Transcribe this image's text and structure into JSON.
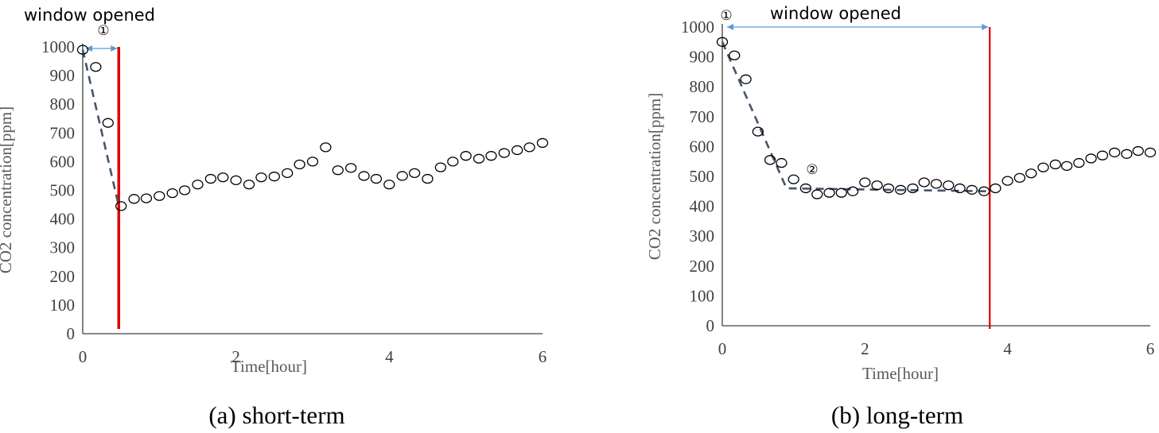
{
  "colors": {
    "axis": "#404040",
    "marker": "#000000",
    "trend": "#44546a",
    "window_line": "#e00000",
    "arrow": "#5b9bd5"
  },
  "chart_data": [
    {
      "type": "scatter",
      "caption": "(a) short-term",
      "annotation": "window opened",
      "marker_labels": [
        "①"
      ],
      "xlabel": "Time[hour]",
      "ylabel": "CO2 concentration[ppm]",
      "xlim": [
        0,
        6
      ],
      "ylim": [
        0,
        1000
      ],
      "xticks": [
        0,
        2,
        4,
        6
      ],
      "yticks": [
        0,
        100,
        200,
        300,
        400,
        500,
        600,
        700,
        800,
        900,
        1000
      ],
      "grid": false,
      "x": [
        0.0,
        0.17,
        0.33,
        0.5,
        0.67,
        0.83,
        1.0,
        1.17,
        1.33,
        1.5,
        1.67,
        1.83,
        2.0,
        2.17,
        2.33,
        2.5,
        2.67,
        2.83,
        3.0,
        3.17,
        3.33,
        3.5,
        3.67,
        3.83,
        4.0,
        4.17,
        4.33,
        4.5,
        4.67,
        4.83,
        5.0,
        5.17,
        5.33,
        5.5,
        5.67,
        5.83,
        6.0
      ],
      "y": [
        990,
        930,
        735,
        445,
        470,
        472,
        480,
        490,
        500,
        520,
        540,
        545,
        535,
        520,
        545,
        548,
        560,
        590,
        600,
        650,
        570,
        578,
        550,
        540,
        520,
        550,
        560,
        540,
        580,
        600,
        620,
        610,
        620,
        630,
        640,
        650,
        665
      ],
      "window_opened_x": [
        0,
        0.47
      ],
      "window_close_x": 0.47,
      "trend_line": [
        [
          0,
          990
        ],
        [
          0.47,
          445
        ]
      ]
    },
    {
      "type": "scatter",
      "caption": "(b) long-term",
      "annotation": "window opened",
      "marker_labels": [
        "①",
        "②"
      ],
      "xlabel": "Time[hour]",
      "ylabel": "CO2 concentration[ppm]",
      "xlim": [
        0,
        6
      ],
      "ylim": [
        0,
        1000
      ],
      "xticks": [
        0,
        2,
        4,
        6
      ],
      "yticks": [
        0,
        100,
        200,
        300,
        400,
        500,
        600,
        700,
        800,
        900,
        1000
      ],
      "grid": false,
      "x": [
        0.0,
        0.17,
        0.33,
        0.5,
        0.67,
        0.83,
        1.0,
        1.17,
        1.33,
        1.5,
        1.67,
        1.83,
        2.0,
        2.17,
        2.33,
        2.5,
        2.67,
        2.83,
        3.0,
        3.17,
        3.33,
        3.5,
        3.67,
        3.83,
        4.0,
        4.17,
        4.33,
        4.5,
        4.67,
        4.83,
        5.0,
        5.17,
        5.33,
        5.5,
        5.67,
        5.83,
        6.0
      ],
      "y": [
        950,
        905,
        825,
        650,
        555,
        545,
        490,
        460,
        440,
        445,
        445,
        450,
        480,
        470,
        460,
        455,
        460,
        480,
        475,
        470,
        460,
        455,
        450,
        460,
        485,
        495,
        510,
        530,
        540,
        535,
        545,
        560,
        570,
        580,
        575,
        585,
        580
      ],
      "window_opened_x": [
        0,
        3.75
      ],
      "window_close_x": 3.75,
      "trend_line": [
        [
          0,
          950
        ],
        [
          0.9,
          460
        ],
        [
          3.75,
          450
        ]
      ]
    }
  ]
}
